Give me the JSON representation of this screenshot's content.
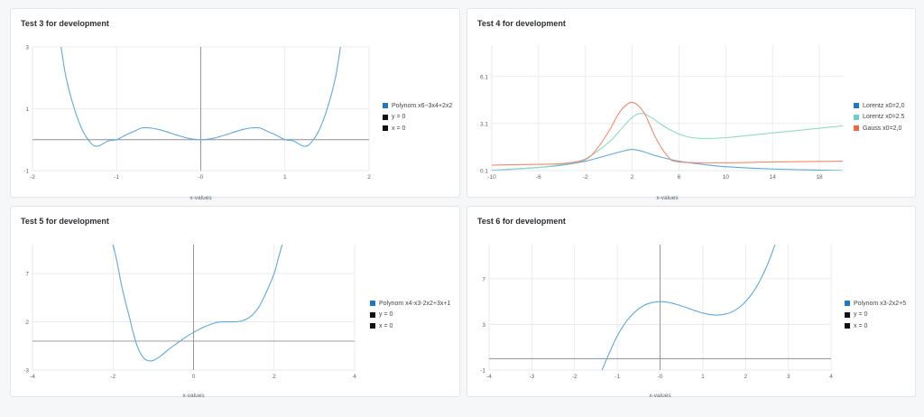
{
  "colors": {
    "series_blue": "#5ea8e0",
    "grid": "#e6e8ea",
    "axis_zero": "#8c9096"
  },
  "chart_data": [
    {
      "type": "line",
      "title": "Test 3 for development",
      "xlabel": "x-values",
      "xlim": [
        -2,
        2
      ],
      "ylim": [
        -1,
        3
      ],
      "xticks": [
        -2,
        -1,
        0,
        1,
        2
      ],
      "yticks": [
        -1,
        1,
        3
      ],
      "xtick_labels": [
        "-2",
        "-1",
        "-0",
        "1",
        "2"
      ],
      "ytick_labels": [
        "-1",
        "1",
        "3"
      ],
      "legend_position": "right",
      "legend": [
        {
          "label": "Polynom x6−3x4+2x2",
          "color": "#1f78c1"
        },
        {
          "label": "y = 0",
          "color": "#111111"
        },
        {
          "label": "x = 0",
          "color": "#111111"
        }
      ],
      "series": [
        {
          "name": "Polynom x6−3x4+2x2",
          "color": "#5ea8e0",
          "points": [
            [
              -1.66,
              3.0
            ],
            [
              -1.6,
              2.0
            ],
            [
              -1.5,
              0.98
            ],
            [
              -1.4,
              0.27
            ],
            [
              -1.3,
              -0.13
            ],
            [
              -1.25,
              -0.21
            ],
            [
              -1.2,
              -0.19
            ],
            [
              -1.1,
              -0.04
            ],
            [
              -1.0,
              0.0
            ],
            [
              -0.9,
              0.14
            ],
            [
              -0.8,
              0.26
            ],
            [
              -0.7,
              0.38
            ],
            [
              -0.6,
              0.38
            ],
            [
              -0.5,
              0.33
            ],
            [
              -0.4,
              0.25
            ],
            [
              -0.3,
              0.16
            ],
            [
              -0.2,
              0.08
            ],
            [
              -0.1,
              0.02
            ],
            [
              0,
              0
            ],
            [
              0.1,
              0.02
            ],
            [
              0.2,
              0.08
            ],
            [
              0.3,
              0.16
            ],
            [
              0.4,
              0.25
            ],
            [
              0.5,
              0.33
            ],
            [
              0.6,
              0.38
            ],
            [
              0.7,
              0.38
            ],
            [
              0.8,
              0.26
            ],
            [
              0.9,
              0.14
            ],
            [
              1.0,
              0.0
            ],
            [
              1.1,
              -0.04
            ],
            [
              1.2,
              -0.19
            ],
            [
              1.25,
              -0.21
            ],
            [
              1.3,
              -0.13
            ],
            [
              1.4,
              0.27
            ],
            [
              1.5,
              0.98
            ],
            [
              1.6,
              2.0
            ],
            [
              1.66,
              3.0
            ]
          ]
        }
      ]
    },
    {
      "type": "line",
      "title": "Test 4 for development",
      "xlabel": "x-values",
      "xlim": [
        -10,
        20
      ],
      "ylim": [
        0.1,
        8.1
      ],
      "xticks": [
        -10,
        -6,
        -2,
        2,
        6,
        10,
        14,
        18
      ],
      "yticks": [
        0.1,
        3.1,
        6.1
      ],
      "xtick_labels": [
        "-10",
        "-6",
        "-2",
        "2",
        "6",
        "10",
        "14",
        "18"
      ],
      "ytick_labels": [
        "0.1",
        "3.1",
        "6.1"
      ],
      "legend_position": "right",
      "legend": [
        {
          "label": "Lorentz x0=2,0",
          "color": "#1f78c1"
        },
        {
          "label": "Lorentz x0=2.5",
          "color": "#6dd0c6"
        },
        {
          "label": "Gauss x0=2,0",
          "color": "#f2683c"
        }
      ],
      "series": [
        {
          "name": "Lorentz x0=2,0",
          "color": "#5ea8e0",
          "points": [
            [
              -10,
              0.12
            ],
            [
              -6,
              0.3
            ],
            [
              -4,
              0.45
            ],
            [
              -2,
              0.7
            ],
            [
              0,
              1.1
            ],
            [
              1,
              1.3
            ],
            [
              2,
              1.45
            ],
            [
              3,
              1.3
            ],
            [
              4,
              1.05
            ],
            [
              6,
              0.7
            ],
            [
              8,
              0.5
            ],
            [
              10,
              0.35
            ],
            [
              14,
              0.2
            ],
            [
              20,
              0.1
            ]
          ]
        },
        {
          "name": "Lorentz x0=2.5",
          "color": "#8fdcc8",
          "points": [
            [
              -10,
              0.1
            ],
            [
              -6,
              0.3
            ],
            [
              -4,
              0.5
            ],
            [
              -2,
              0.85
            ],
            [
              0,
              1.9
            ],
            [
              1,
              2.7
            ],
            [
              2,
              3.5
            ],
            [
              2.8,
              3.75
            ],
            [
              3.6,
              3.5
            ],
            [
              5,
              2.8
            ],
            [
              6.5,
              2.3
            ],
            [
              8,
              2.15
            ],
            [
              10,
              2.2
            ],
            [
              14,
              2.5
            ],
            [
              20,
              2.95
            ]
          ]
        },
        {
          "name": "Gauss x0=2,0",
          "color": "#f4896b",
          "points": [
            [
              -10,
              0.45
            ],
            [
              -6,
              0.5
            ],
            [
              -4,
              0.55
            ],
            [
              -2,
              0.8
            ],
            [
              -1,
              1.5
            ],
            [
              0,
              2.6
            ],
            [
              1,
              3.9
            ],
            [
              2,
              4.45
            ],
            [
              3,
              3.8
            ],
            [
              4,
              2.2
            ],
            [
              5,
              1.05
            ],
            [
              6,
              0.65
            ],
            [
              10,
              0.6
            ],
            [
              14,
              0.65
            ],
            [
              20,
              0.7
            ]
          ]
        }
      ]
    },
    {
      "type": "line",
      "title": "Test 5 for development",
      "xlabel": "x-values",
      "xlim": [
        -4,
        4
      ],
      "ylim": [
        -3,
        10
      ],
      "xticks": [
        -4,
        -2,
        0,
        2,
        4
      ],
      "yticks": [
        -3,
        2,
        7
      ],
      "xtick_labels": [
        "-4",
        "-2",
        "0",
        "2",
        "4"
      ],
      "ytick_labels": [
        "-3",
        "2",
        "7"
      ],
      "legend_position": "right",
      "legend": [
        {
          "label": "Polynom x4-x3-2x2+3x+1",
          "color": "#1f78c1"
        },
        {
          "label": "y = 0",
          "color": "#111111"
        },
        {
          "label": "x = 0",
          "color": "#111111"
        }
      ],
      "series": [
        {
          "name": "Polynom x4-x3-2x2+3x+1",
          "color": "#5ea8e0",
          "points": [
            [
              -2.0,
              10.0
            ],
            [
              -1.9,
              8.2
            ],
            [
              -1.8,
              6.0
            ],
            [
              -1.7,
              4.2
            ],
            [
              -1.6,
              2.6
            ],
            [
              -1.5,
              0.9
            ],
            [
              -1.4,
              -0.5
            ],
            [
              -1.3,
              -1.4
            ],
            [
              -1.2,
              -1.9
            ],
            [
              -1.1,
              -2.05
            ],
            [
              -1.0,
              -2.0
            ],
            [
              -0.8,
              -1.5
            ],
            [
              -0.6,
              -0.8
            ],
            [
              -0.4,
              -0.2
            ],
            [
              -0.2,
              0.4
            ],
            [
              0,
              0.9
            ],
            [
              0.2,
              1.35
            ],
            [
              0.4,
              1.7
            ],
            [
              0.6,
              1.95
            ],
            [
              0.8,
              2.0
            ],
            [
              1.0,
              2.0
            ],
            [
              1.2,
              2.1
            ],
            [
              1.4,
              2.5
            ],
            [
              1.6,
              3.4
            ],
            [
              1.8,
              5.0
            ],
            [
              2.0,
              7.0
            ],
            [
              2.1,
              8.5
            ],
            [
              2.2,
              10.0
            ]
          ]
        }
      ]
    },
    {
      "type": "line",
      "title": "Test 6 for development",
      "xlabel": "x-values",
      "xlim": [
        -4,
        4
      ],
      "ylim": [
        -1,
        10
      ],
      "xticks": [
        -4,
        -3,
        -2,
        -1,
        0,
        1,
        2,
        3,
        4
      ],
      "yticks": [
        -1,
        3,
        7
      ],
      "xtick_labels": [
        "-4",
        "-3",
        "-2",
        "-1",
        "-0",
        "1",
        "2",
        "3",
        "4"
      ],
      "ytick_labels": [
        "-1",
        "3",
        "7"
      ],
      "legend_position": "right",
      "legend": [
        {
          "label": "Polynom x3-2x2+5",
          "color": "#1f78c1"
        },
        {
          "label": "y = 0",
          "color": "#111111"
        },
        {
          "label": "x = 0",
          "color": "#111111"
        }
      ],
      "series": [
        {
          "name": "Polynom x3-2x2+5",
          "color": "#5ea8e0",
          "points": [
            [
              -1.36,
              -1.0
            ],
            [
              -1.3,
              -0.5
            ],
            [
              -1.2,
              0.39
            ],
            [
              -1.0,
              2.0
            ],
            [
              -0.8,
              3.21
            ],
            [
              -0.6,
              4.06
            ],
            [
              -0.4,
              4.62
            ],
            [
              -0.2,
              4.91
            ],
            [
              0,
              5.0
            ],
            [
              0.2,
              4.93
            ],
            [
              0.4,
              4.74
            ],
            [
              0.6,
              4.5
            ],
            [
              0.8,
              4.23
            ],
            [
              1.0,
              4.0
            ],
            [
              1.2,
              3.85
            ],
            [
              1.33,
              3.82
            ],
            [
              1.5,
              3.88
            ],
            [
              1.7,
              4.13
            ],
            [
              1.9,
              4.64
            ],
            [
              2.1,
              5.44
            ],
            [
              2.3,
              6.59
            ],
            [
              2.5,
              8.13
            ],
            [
              2.7,
              10.1
            ]
          ]
        }
      ]
    }
  ]
}
